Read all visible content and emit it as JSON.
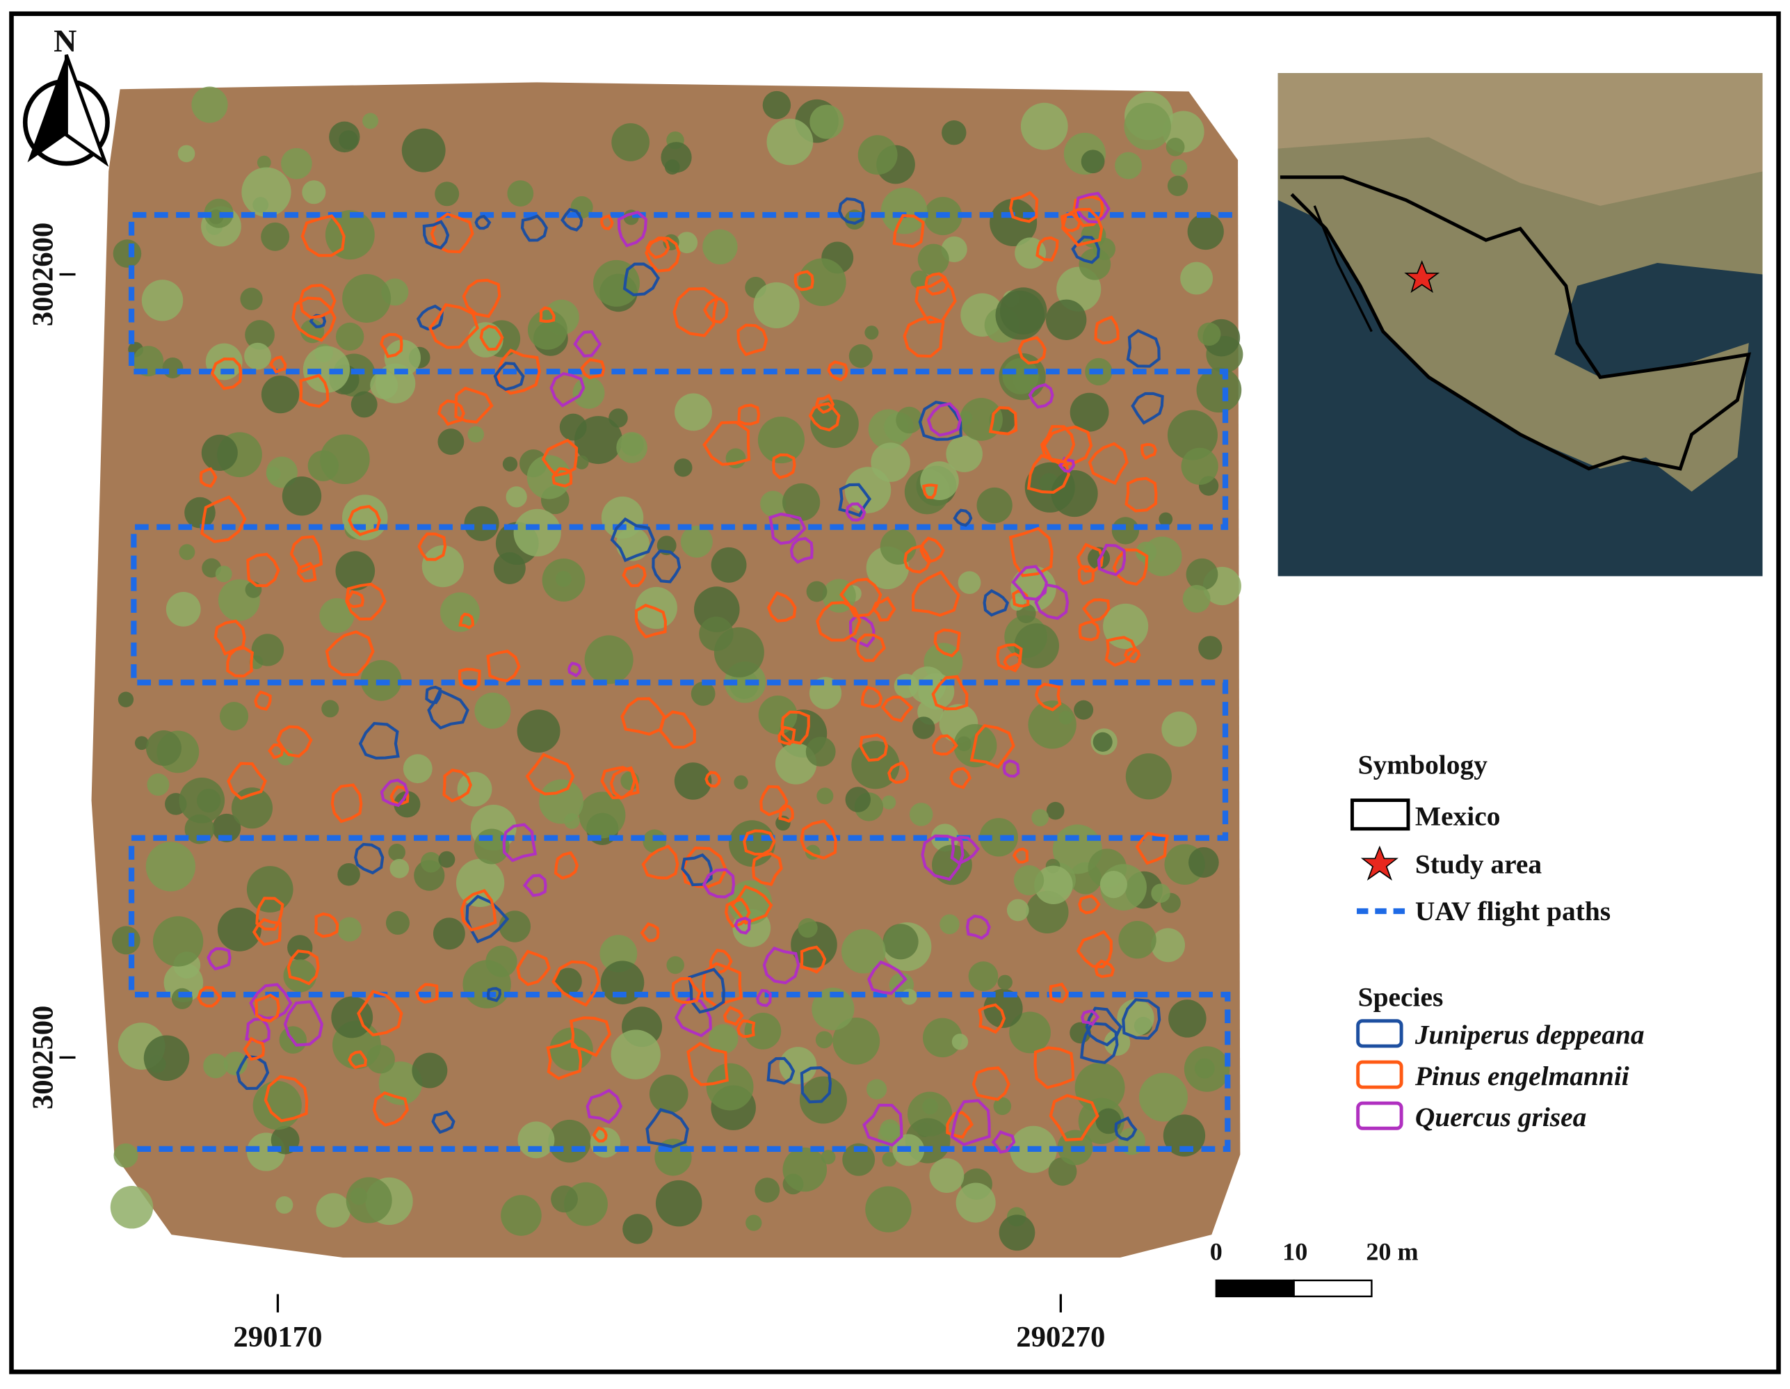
{
  "north_arrow": {
    "label": "N"
  },
  "coordinates": {
    "northing": [
      "3002600",
      "3002500"
    ],
    "easting": [
      "290170",
      "290270"
    ]
  },
  "legend": {
    "title": "Symbology",
    "items": [
      "Mexico",
      "Study area",
      "UAV flight paths"
    ],
    "species_title": "Species",
    "species": [
      "Juniperus deppeana",
      "Pinus engelmannii",
      "Quercus grisea"
    ]
  },
  "scale_bar": {
    "labels": [
      "0",
      "10",
      "20 m"
    ]
  }
}
